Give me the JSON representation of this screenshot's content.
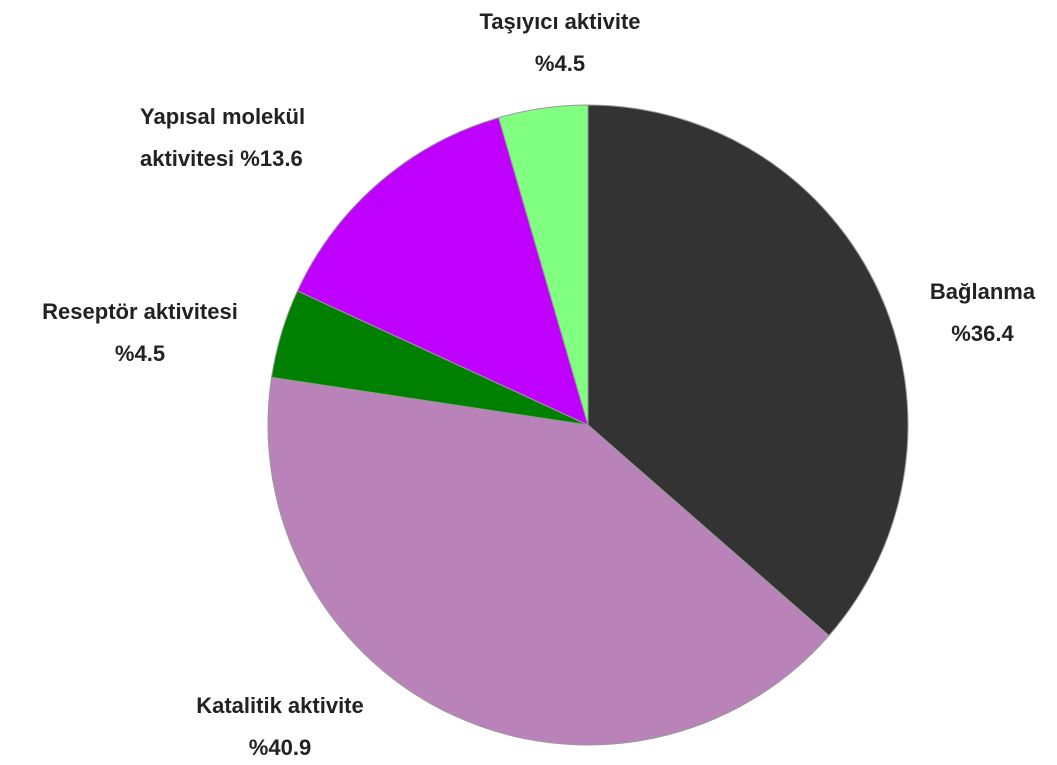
{
  "chart_data": {
    "type": "pie",
    "categories": [
      "Bağlanma",
      "Katalitik aktivite",
      "Reseptör aktivitesi",
      "Yapısal molekül aktivitesi",
      "Taşıyıcı aktivite"
    ],
    "values": [
      36.4,
      40.9,
      4.5,
      13.6,
      4.5
    ],
    "value_labels": [
      "%36.4",
      "%40.9",
      "%4.5",
      "%13.6",
      "%4.5"
    ],
    "colors": [
      "#333333",
      "#b983b9",
      "#008000",
      "#bf00ff",
      "#80ff80"
    ]
  }
}
